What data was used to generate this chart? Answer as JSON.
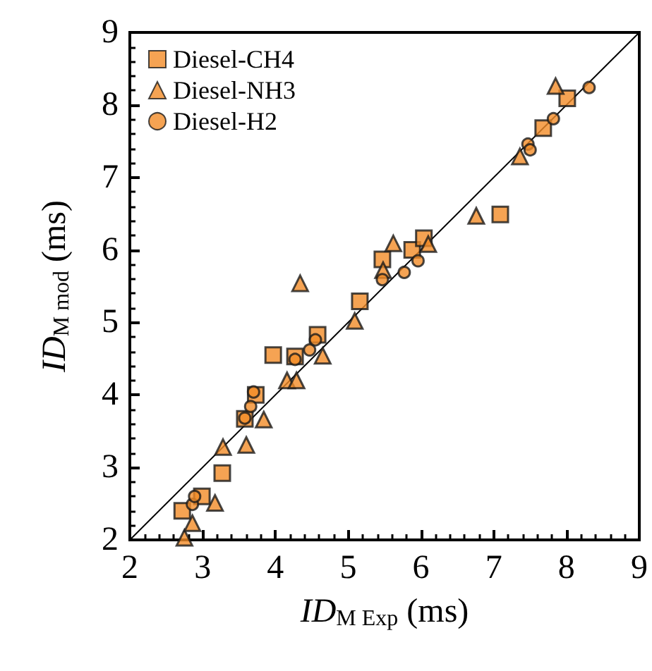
{
  "chart_data": {
    "type": "scatter",
    "xlabel": "ID$_{M Exp}$ (ms)",
    "ylabel": "ID$_{M mod}$ (ms)",
    "xlim": [
      2,
      9
    ],
    "ylim": [
      2,
      9
    ],
    "xticks": [
      2,
      3,
      4,
      5,
      6,
      7,
      8,
      9
    ],
    "yticks": [
      2,
      3,
      4,
      5,
      6,
      7,
      8,
      9
    ],
    "grid": false,
    "legend": "top left",
    "series": [
      {
        "name": "Diesel-CH4",
        "color": "#f28c28",
        "marker": "square",
        "x": [
          2.72,
          2.99,
          3.27,
          3.58,
          3.73,
          3.97,
          4.27,
          4.58,
          5.16,
          5.47,
          5.88,
          6.04,
          7.09,
          7.68,
          8.01
        ],
        "values": [
          2.4,
          2.6,
          2.92,
          3.67,
          4.0,
          4.55,
          4.53,
          4.83,
          5.29,
          5.87,
          6.0,
          6.16,
          6.49,
          7.68,
          8.09
        ]
      },
      {
        "name": "Diesel-NH3",
        "color": "#f28c28",
        "marker": "triangle",
        "x": [
          2.75,
          2.86,
          3.17,
          3.28,
          3.6,
          3.84,
          4.16,
          4.29,
          4.34,
          4.65,
          5.09,
          5.48,
          5.62,
          6.1,
          6.76,
          7.36,
          7.85
        ],
        "values": [
          2.03,
          2.23,
          2.51,
          3.28,
          3.31,
          3.66,
          4.2,
          4.2,
          5.54,
          4.54,
          5.02,
          5.72,
          6.09,
          6.08,
          6.47,
          7.29,
          8.26
        ]
      },
      {
        "name": "Diesel-H2",
        "color": "#f28c28",
        "marker": "circle",
        "x": [
          2.86,
          2.89,
          3.58,
          3.66,
          3.7,
          4.27,
          4.47,
          4.55,
          5.47,
          5.77,
          5.96,
          7.47,
          7.5,
          7.82,
          8.31
        ],
        "values": [
          2.49,
          2.6,
          3.68,
          3.84,
          4.04,
          4.49,
          4.62,
          4.76,
          5.59,
          5.69,
          5.85,
          7.46,
          7.38,
          7.81,
          8.24
        ]
      },
      {
        "type": "line",
        "color": "#000000",
        "marker": "none",
        "line_style": "solid",
        "x": [
          2,
          9
        ],
        "values": [
          2,
          9
        ]
      }
    ]
  }
}
